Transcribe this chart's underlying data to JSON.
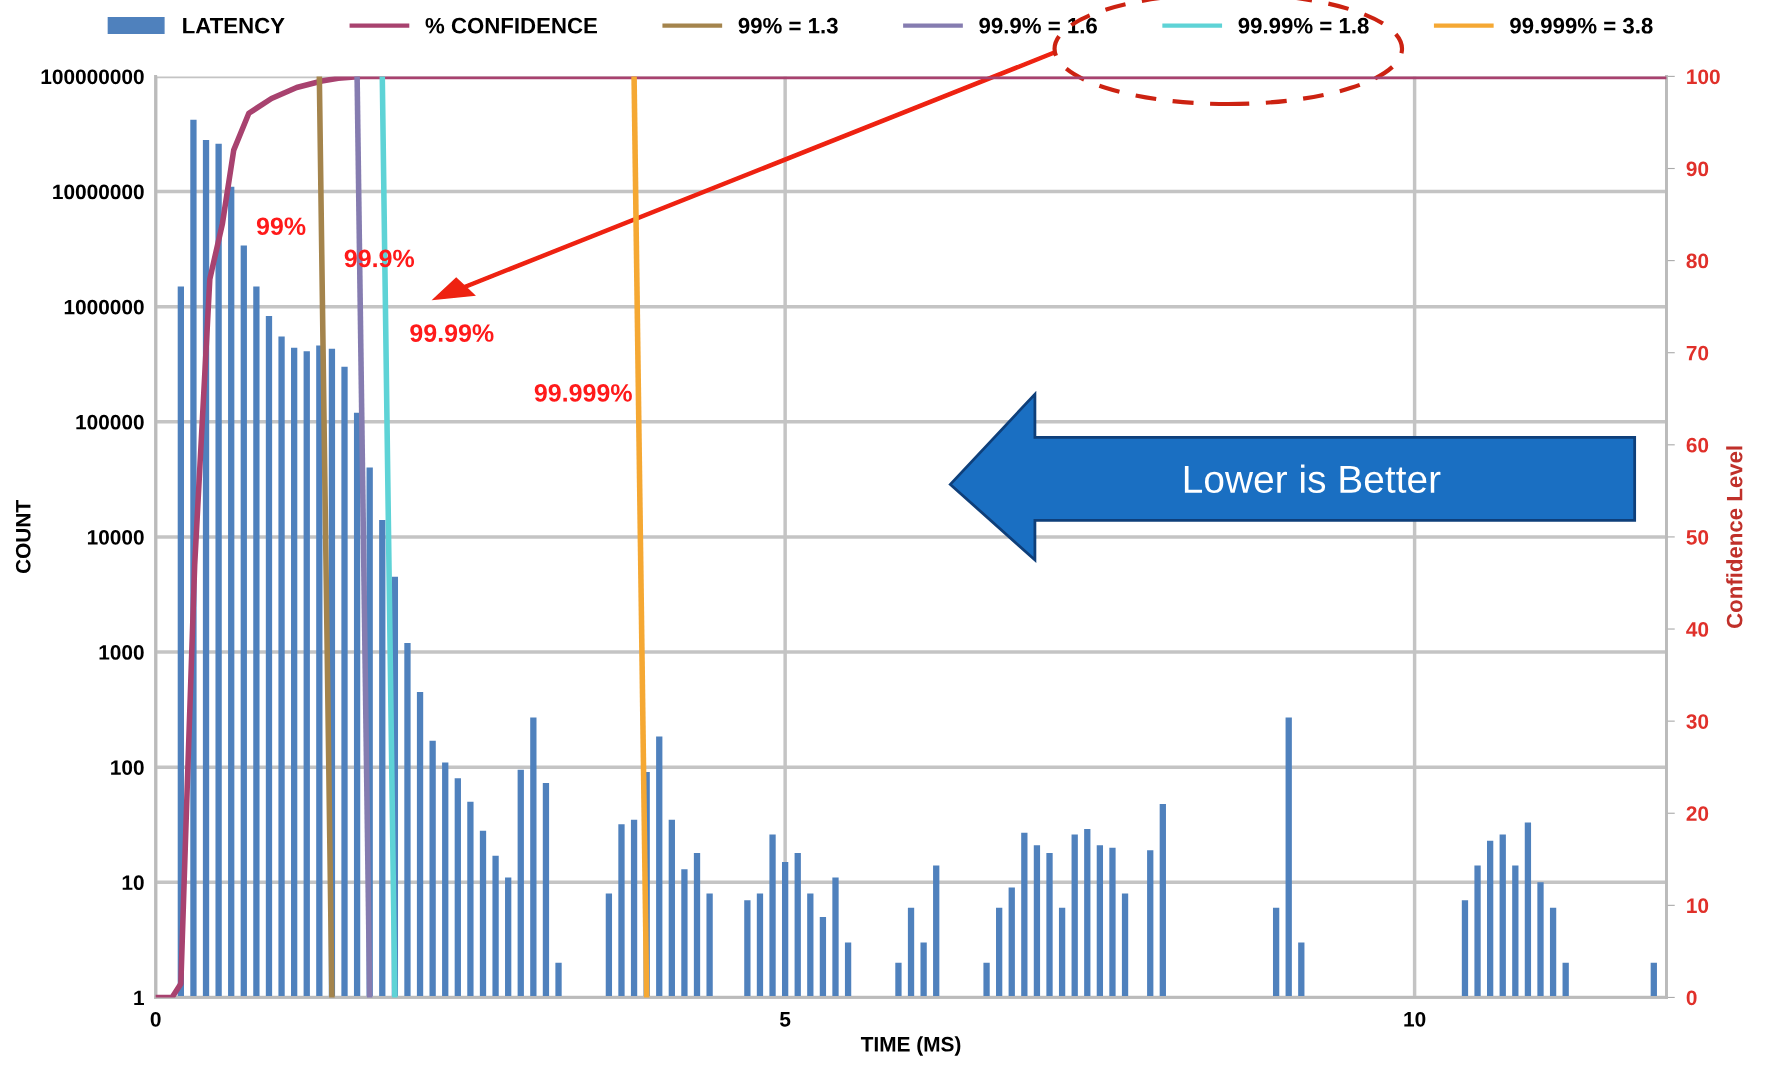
{
  "chart_data": {
    "type": "bar",
    "xlabel": "TIME (MS)",
    "ylabel": "COUNT",
    "y2label": "Confidence Level",
    "series": [
      {
        "name": "LATENCY",
        "color": "#4f81bd",
        "x": [
          0.2,
          0.3,
          0.4,
          0.5,
          0.6,
          0.7,
          0.8,
          0.9,
          1.0,
          1.1,
          1.2,
          1.3,
          1.4,
          1.5,
          1.6,
          1.7,
          1.8,
          1.9,
          2.0,
          2.1,
          2.2,
          2.3,
          2.4,
          2.5,
          2.6,
          2.7,
          2.8,
          2.9,
          3.0,
          3.1,
          3.2,
          3.6,
          3.7,
          3.8,
          3.9,
          4.0,
          4.1,
          4.2,
          4.3,
          4.4,
          4.7,
          4.8,
          4.9,
          5.0,
          5.1,
          5.2,
          5.3,
          5.4,
          5.5,
          5.9,
          6.0,
          6.1,
          6.2,
          6.6,
          6.7,
          6.8,
          6.9,
          7.0,
          7.1,
          7.2,
          7.3,
          7.4,
          7.5,
          7.6,
          7.7,
          7.9,
          8.0,
          8.9,
          9.0,
          9.1,
          10.4,
          10.5,
          10.6,
          10.7,
          10.8,
          10.9,
          11.0,
          11.1,
          11.2,
          11.9
        ],
        "values": [
          1500000,
          42000000,
          28000000,
          26000000,
          11000000,
          3400000,
          1500000,
          830000,
          550000,
          440000,
          410000,
          460000,
          430000,
          300000,
          120000,
          40000,
          14000,
          4500,
          1200,
          450,
          170,
          110,
          80,
          50,
          28,
          17,
          11,
          95,
          270,
          73,
          2,
          8,
          32,
          35,
          91,
          185,
          35,
          13,
          18,
          8,
          7,
          8,
          26,
          15,
          18,
          8,
          5,
          11,
          3,
          2,
          6,
          3,
          14,
          2,
          6,
          9,
          27,
          21,
          18,
          6,
          26,
          29,
          21,
          20,
          8,
          19,
          48,
          6,
          270,
          3,
          7,
          14,
          23,
          26,
          14,
          33,
          10,
          6,
          2,
          2
        ]
      },
      {
        "name": "% CONFIDENCE",
        "type": "line",
        "axis": "y2",
        "color": "#a8426f",
        "x": [
          0,
          0.13,
          0.2,
          0.25,
          0.31,
          0.43,
          0.53,
          0.62,
          0.74,
          0.92,
          1.12,
          1.32,
          1.45,
          1.63,
          12
        ],
        "values": [
          0,
          0,
          1.5,
          22.6,
          47,
          78,
          84,
          92,
          96,
          97.6,
          98.8,
          99.5,
          99.8,
          100,
          100
        ]
      },
      {
        "name": "99% = 1.3",
        "type": "line",
        "axis": "y2",
        "color": "#a4844c",
        "x": [
          1.3,
          1.4
        ],
        "values": [
          100,
          0
        ]
      },
      {
        "name": "99.9% = 1.6",
        "type": "line",
        "axis": "y2",
        "color": "#857cb0",
        "x": [
          1.6,
          1.7
        ],
        "values": [
          100,
          0
        ]
      },
      {
        "name": "99.99% = 1.8",
        "type": "line",
        "axis": "y2",
        "color": "#5ed3d6",
        "x": [
          1.8,
          1.9
        ],
        "values": [
          100,
          0
        ]
      },
      {
        "name": "99.999% = 3.8",
        "type": "line",
        "axis": "y2",
        "color": "#f5a833",
        "x": [
          3.8,
          3.9
        ],
        "values": [
          100,
          0
        ]
      }
    ],
    "log": "y",
    "xlim": [
      0,
      12
    ],
    "xticks": [
      0,
      5,
      10
    ],
    "ylim": [
      1,
      100000000
    ],
    "yticks": [
      1,
      10,
      100,
      1000,
      10000,
      100000,
      1000000,
      10000000,
      100000000
    ],
    "y2lim": [
      0,
      100
    ],
    "y2ticks": [
      0,
      10,
      20,
      30,
      40,
      50,
      60,
      70,
      80,
      90,
      100
    ],
    "grid": true,
    "legend": "top",
    "annotations": [
      "99%",
      "99.9%",
      "99.99%",
      "99.999%",
      "Lower is Better"
    ]
  }
}
